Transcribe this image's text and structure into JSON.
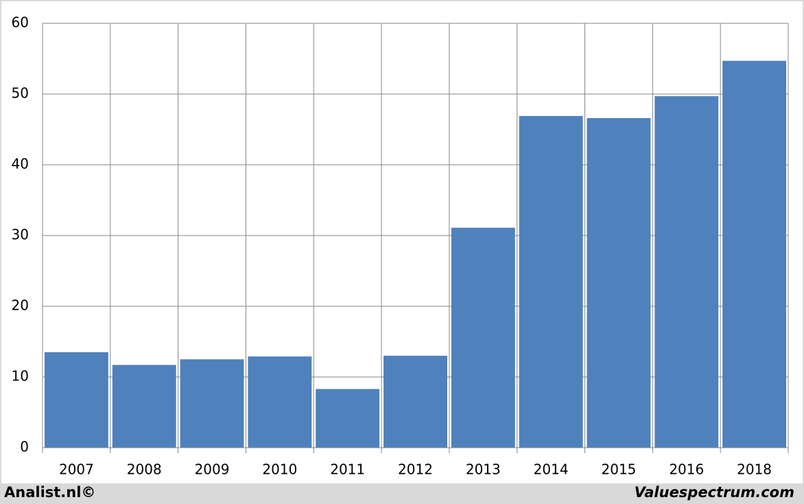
{
  "chart_data": {
    "type": "bar",
    "categories": [
      "2007",
      "2008",
      "2009",
      "2010",
      "2011",
      "2012",
      "2013",
      "2014",
      "2015",
      "2016",
      "2018"
    ],
    "values": [
      13.5,
      11.7,
      12.5,
      12.9,
      8.3,
      13.0,
      31.1,
      46.9,
      46.6,
      49.7,
      54.7
    ],
    "color": "#4f81bd",
    "ylim": [
      0,
      60
    ],
    "yticks": [
      0,
      10,
      20,
      30,
      40,
      50,
      60
    ],
    "grid": true,
    "annotations": [
      "Analist.nl©",
      "Valuespectrum.com"
    ]
  }
}
